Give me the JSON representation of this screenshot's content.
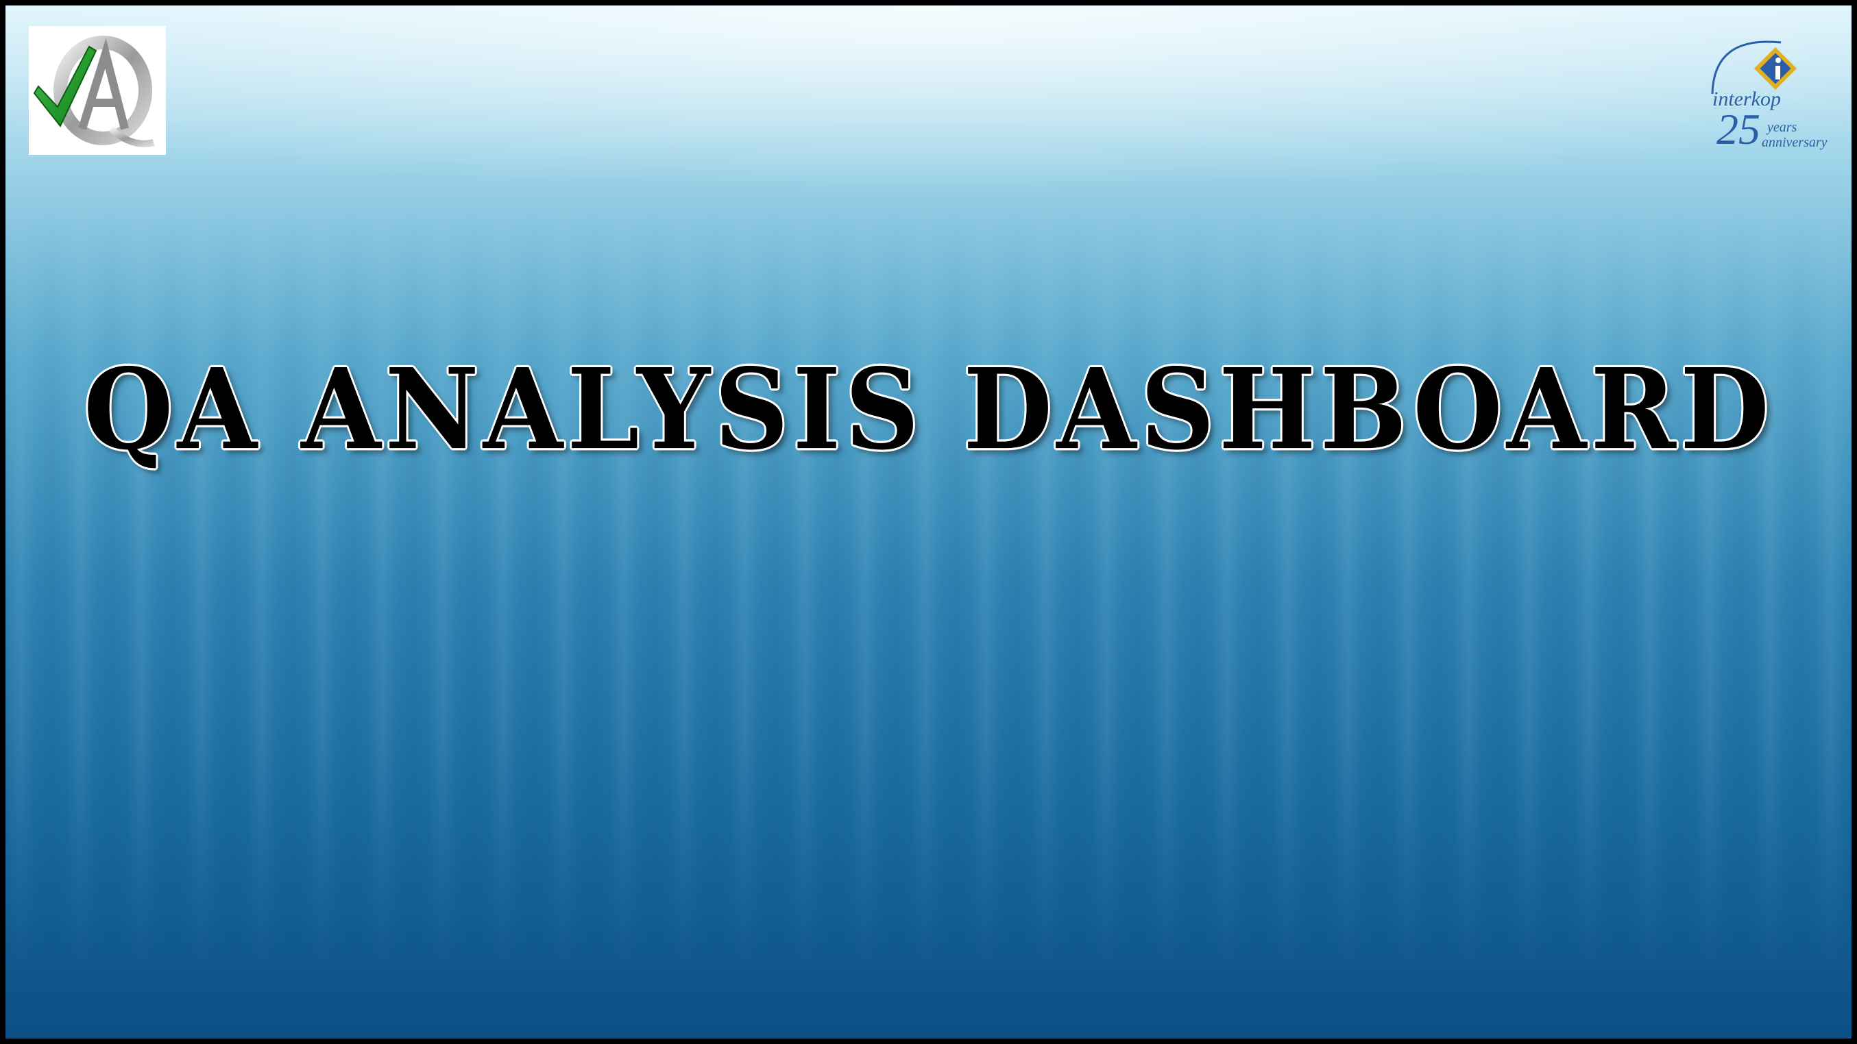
{
  "slide": {
    "title": "QA ANALYSIS DASHBOARD"
  },
  "logos": {
    "left": {
      "icon": "qa-checkmark-logo-icon",
      "letters": "QA"
    },
    "right": {
      "icon": "interkoop-logo-icon",
      "brand": "interkop",
      "number": "25",
      "line1": "years",
      "line2": "anniversary"
    }
  },
  "colors": {
    "background_top": "#d9f2fb",
    "background_bottom": "#0b4f86",
    "title_text": "#000000",
    "check_green": "#1a9a2a",
    "brand_blue": "#2a5fa8",
    "brand_gold": "#e0b020"
  }
}
